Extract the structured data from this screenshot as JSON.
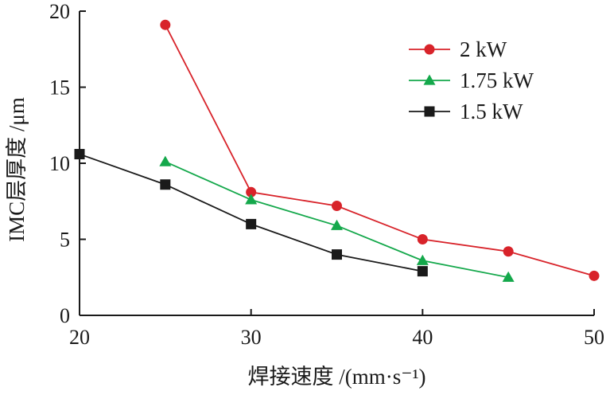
{
  "chart_data": {
    "type": "line",
    "xlabel": "焊接速度 /(mm·s⁻¹)",
    "ylabel": "IMC层厚度 /μm",
    "xlim": [
      20,
      50
    ],
    "ylim": [
      0,
      20
    ],
    "xticks": [
      "20",
      "30",
      "40",
      "50"
    ],
    "yticks": [
      "0",
      "5",
      "10",
      "15",
      "20"
    ],
    "grid": false,
    "legend_position": "top-right",
    "series": [
      {
        "name": "2 kW",
        "color": "#d8232a",
        "marker": "circle",
        "x": [
          25,
          30,
          35,
          40,
          45,
          50
        ],
        "y": [
          19.1,
          8.1,
          7.2,
          5.0,
          4.2,
          2.6
        ]
      },
      {
        "name": "1.75 kW",
        "color": "#14a84b",
        "marker": "triangle",
        "x": [
          25,
          30,
          35,
          40,
          45
        ],
        "y": [
          10.1,
          7.6,
          5.9,
          3.6,
          2.5
        ]
      },
      {
        "name": "1.5 kW",
        "color": "#1a1a1a",
        "marker": "square",
        "x": [
          20,
          25,
          30,
          35,
          40
        ],
        "y": [
          10.6,
          8.6,
          6.0,
          4.0,
          2.9
        ]
      }
    ]
  }
}
